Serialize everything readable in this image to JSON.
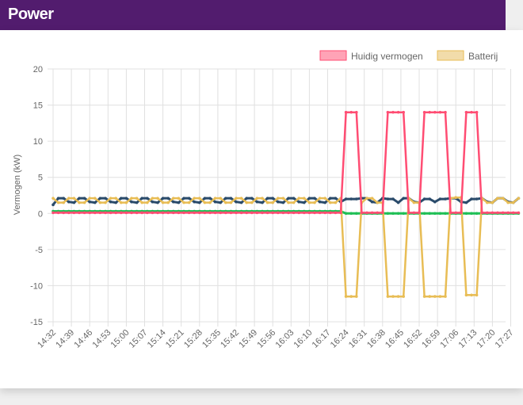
{
  "header": {
    "title": "Power"
  },
  "chart_data": {
    "type": "line",
    "title": "Power",
    "ylabel": "Vermogen (kW)",
    "xlabel": "",
    "ylim": [
      -15,
      20
    ],
    "yticks": [
      20,
      15,
      10,
      5,
      0,
      -5,
      -10,
      -15
    ],
    "grid": true,
    "legend_position": "top-right",
    "x_start": "14:32",
    "x_step_minutes": 2,
    "x_tick_step_minutes": 7,
    "xticks": [
      "14:32",
      "14:39",
      "14:46",
      "14:53",
      "15:00",
      "15:07",
      "15:14",
      "15:21",
      "15:28",
      "15:35",
      "15:42",
      "15:49",
      "15:56",
      "16:03",
      "16:10",
      "16:17",
      "16:24",
      "16:31",
      "16:38",
      "16:45",
      "16:52",
      "16:59",
      "17:06",
      "17:13",
      "17:20",
      "17:27"
    ],
    "series": [
      {
        "name": "Huidig vermogen",
        "color": "#ff4d73",
        "fill": "#ffa3b6",
        "in_legend": true,
        "values": [
          0.1,
          0.1,
          0.1,
          0.1,
          0.1,
          0.1,
          0.1,
          0.1,
          0.1,
          0.1,
          0.1,
          0.1,
          0.1,
          0.1,
          0.1,
          0.1,
          0.1,
          0.1,
          0.1,
          0.1,
          0.1,
          0.1,
          0.1,
          0.1,
          0.1,
          0.1,
          0.1,
          0.1,
          0.1,
          0.1,
          0.1,
          0.1,
          0.1,
          0.1,
          0.1,
          0.1,
          0.1,
          0.1,
          0.1,
          0.1,
          0.1,
          0.1,
          0.1,
          0.1,
          0.1,
          0.1,
          0.1,
          0.1,
          0.1,
          0.1,
          0.1,
          0.1,
          0.1,
          0.1,
          0.1,
          0.1,
          14,
          14,
          14,
          0.1,
          0.1,
          0.1,
          0.1,
          0.1,
          14,
          14,
          14,
          14,
          0.1,
          0.1,
          0.1,
          14,
          14,
          14,
          14,
          14,
          0.1,
          0.1,
          0.1,
          14,
          14,
          14,
          0.1,
          0.1,
          0.1,
          0.1,
          0.1,
          0.1,
          0.1,
          0.1
        ]
      },
      {
        "name": "Batterij",
        "color": "#e8bd55",
        "fill": "#f2dcaa",
        "in_legend": true,
        "values": [
          2.1,
          1.5,
          1.5,
          2.1,
          2.1,
          1.5,
          1.5,
          2.1,
          2.1,
          1.5,
          1.5,
          2.1,
          2.1,
          1.5,
          1.5,
          2.1,
          2.1,
          1.5,
          1.5,
          2.1,
          2.1,
          1.5,
          1.5,
          2.1,
          2.1,
          1.5,
          1.5,
          2.1,
          2.1,
          1.5,
          1.5,
          2.1,
          2.1,
          1.5,
          1.5,
          2.1,
          2.1,
          1.5,
          1.5,
          2.1,
          2.1,
          1.5,
          1.5,
          2.1,
          2.1,
          1.5,
          1.5,
          2.1,
          2.1,
          1.5,
          1.5,
          2.1,
          2.1,
          1.5,
          1.5,
          2.1,
          -11.5,
          -11.5,
          -11.5,
          1.5,
          2.1,
          2.1,
          1.5,
          1.5,
          -11.5,
          -11.5,
          -11.5,
          -11.5,
          2.1,
          1.5,
          1.5,
          -11.5,
          -11.5,
          -11.5,
          -11.5,
          -11.5,
          2.1,
          2.2,
          2.2,
          -11.3,
          -11.3,
          -11.3,
          2.1,
          1.5,
          1.5,
          2.1,
          2.1,
          1.5,
          1.5,
          2.1
        ]
      },
      {
        "name": "",
        "color": "#2a4b6b",
        "in_legend": false,
        "values": [
          1.2,
          2.1,
          2.1,
          1.6,
          1.5,
          2.1,
          2.1,
          1.6,
          1.5,
          2.1,
          2.1,
          1.6,
          1.5,
          2.1,
          2.1,
          1.6,
          1.5,
          2.1,
          2.1,
          1.6,
          1.5,
          2.1,
          2.1,
          1.6,
          1.5,
          2.1,
          2.1,
          1.6,
          1.5,
          2.1,
          2.1,
          1.6,
          1.5,
          2.1,
          2.1,
          1.6,
          1.5,
          2.1,
          2.1,
          1.6,
          1.5,
          2.1,
          2.1,
          1.6,
          1.5,
          2.1,
          2.1,
          1.6,
          1.5,
          2.1,
          2.1,
          1.6,
          1.5,
          2.1,
          2.1,
          1.6,
          2,
          2,
          2,
          2.1,
          2.1,
          1.6,
          1.5,
          2.1,
          2,
          2,
          1.5,
          2.1,
          2.1,
          1.6,
          1.5,
          2,
          2,
          1.6,
          2,
          2,
          2.1,
          2.1,
          1.6,
          1.5,
          2,
          2,
          2.1,
          1.6,
          1.5,
          2.1,
          2.1,
          1.6,
          1.5,
          2.1
        ]
      },
      {
        "name": "",
        "color": "#1fbf55",
        "in_legend": false,
        "values": [
          0.3,
          0.3,
          0.3,
          0.3,
          0.3,
          0.3,
          0.3,
          0.3,
          0.3,
          0.3,
          0.3,
          0.3,
          0.3,
          0.3,
          0.3,
          0.3,
          0.3,
          0.3,
          0.3,
          0.3,
          0.3,
          0.3,
          0.3,
          0.3,
          0.3,
          0.3,
          0.3,
          0.3,
          0.3,
          0.3,
          0.3,
          0.3,
          0.3,
          0.3,
          0.3,
          0.3,
          0.3,
          0.3,
          0.3,
          0.3,
          0.3,
          0.3,
          0.3,
          0.3,
          0.3,
          0.3,
          0.3,
          0.3,
          0.3,
          0.3,
          0.3,
          0.3,
          0.3,
          0.3,
          0.3,
          0.3,
          0,
          0,
          0,
          0,
          0,
          0,
          0,
          0,
          0,
          0,
          0,
          0,
          0,
          0,
          0,
          0,
          0,
          0,
          0,
          0,
          0,
          0,
          0,
          0,
          0,
          0,
          0,
          0,
          0,
          0,
          0,
          0,
          0,
          0
        ]
      }
    ]
  }
}
